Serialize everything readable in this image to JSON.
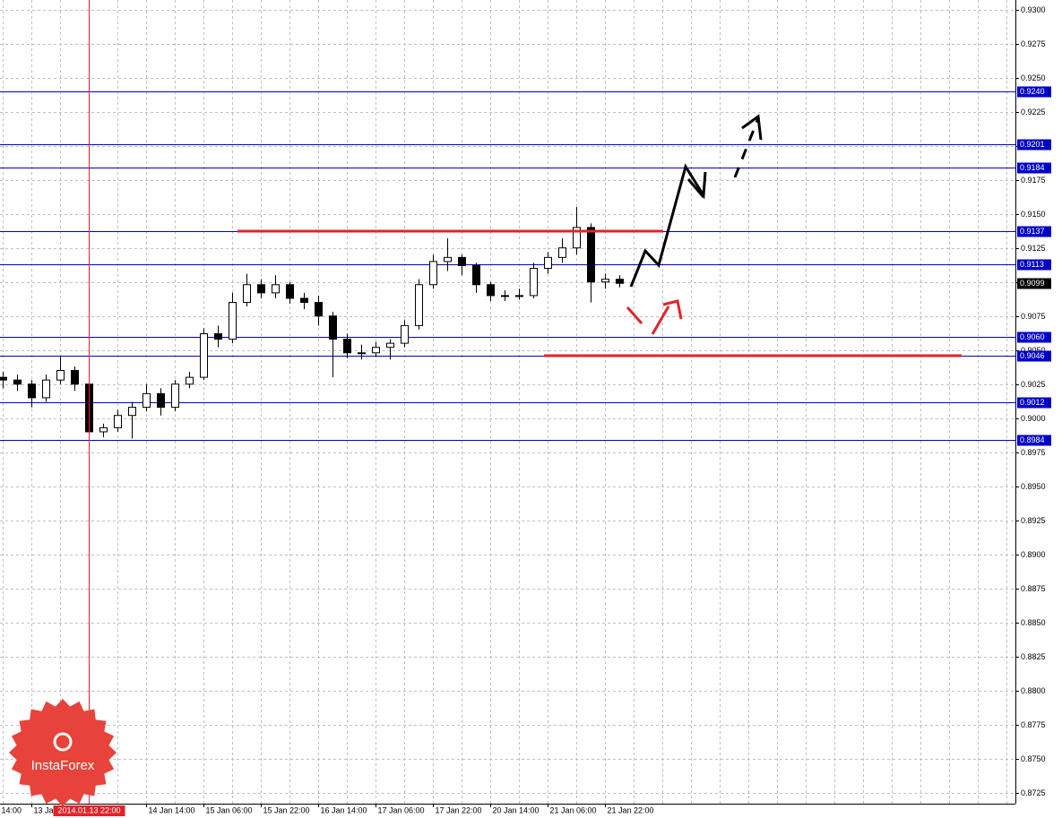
{
  "chart_data": {
    "type": "candlestick",
    "x": [
      8,
      12,
      16,
      20,
      24,
      28,
      32,
      36,
      40,
      44,
      48,
      52,
      56,
      60,
      64,
      68,
      72,
      76,
      80,
      84,
      88,
      92,
      96,
      100,
      104,
      108,
      112,
      116,
      120,
      124,
      128,
      132,
      136,
      140,
      144,
      148,
      152,
      156,
      160,
      164,
      168,
      172,
      176,
      180
    ],
    "open": [
      0.903,
      0.9028,
      0.9025,
      0.9015,
      0.9028,
      0.9035,
      0.9025,
      0.899,
      0.8993,
      0.9002,
      0.9008,
      0.9018,
      0.9008,
      0.9025,
      0.903,
      0.9062,
      0.9058,
      0.9085,
      0.9098,
      0.9092,
      0.9098,
      0.9088,
      0.9085,
      0.9075,
      0.9058,
      0.9048,
      0.9048,
      0.9052,
      0.9055,
      0.9068,
      0.9098,
      0.9115,
      0.9118,
      0.9112,
      0.9098,
      0.909,
      0.909,
      0.909,
      0.911,
      0.9118,
      0.9125,
      0.914,
      0.91,
      0.9102
    ],
    "high": [
      0.9034,
      0.9032,
      0.9028,
      0.9032,
      0.9046,
      0.9038,
      0.9028,
      0.8996,
      0.9006,
      0.9012,
      0.9025,
      0.9022,
      0.9028,
      0.9034,
      0.9066,
      0.9068,
      0.9092,
      0.9106,
      0.9102,
      0.9105,
      0.91,
      0.9092,
      0.909,
      0.9078,
      0.9062,
      0.9054,
      0.9056,
      0.9058,
      0.9072,
      0.9102,
      0.912,
      0.9132,
      0.912,
      0.9114,
      0.91,
      0.9094,
      0.9095,
      0.9114,
      0.9122,
      0.9132,
      0.9155,
      0.9143,
      0.9106,
      0.9105
    ],
    "low": [
      0.9022,
      0.902,
      0.9008,
      0.9012,
      0.9025,
      0.902,
      0.8985,
      0.8986,
      0.899,
      0.8985,
      0.9005,
      0.9002,
      0.9005,
      0.9022,
      0.9028,
      0.9052,
      0.9055,
      0.9082,
      0.9088,
      0.9088,
      0.9084,
      0.908,
      0.9068,
      0.903,
      0.9044,
      0.9043,
      0.9045,
      0.9043,
      0.9052,
      0.9065,
      0.9095,
      0.9108,
      0.9105,
      0.9092,
      0.9086,
      0.9086,
      0.9087,
      0.9088,
      0.9106,
      0.9114,
      0.912,
      0.9085,
      0.9095,
      0.9096
    ],
    "close": [
      0.9028,
      0.9025,
      0.9015,
      0.9028,
      0.9035,
      0.9025,
      0.899,
      0.8993,
      0.9002,
      0.9008,
      0.9018,
      0.9008,
      0.9025,
      0.903,
      0.9062,
      0.9058,
      0.9085,
      0.9098,
      0.9092,
      0.9098,
      0.9088,
      0.9085,
      0.9075,
      0.9058,
      0.9048,
      0.9048,
      0.9052,
      0.9055,
      0.9068,
      0.9098,
      0.9115,
      0.9118,
      0.9112,
      0.9098,
      0.909,
      0.909,
      0.909,
      0.911,
      0.9118,
      0.9125,
      0.914,
      0.91,
      0.9102,
      0.9099
    ],
    "xlim": [
      7.25,
      290.5
    ],
    "xticks": [
      {
        "value": 7,
        "label": "14:00"
      },
      {
        "value": 16,
        "label": "13 Jan 06:00"
      },
      {
        "value": 48,
        "label": "14 Jan 14:00"
      },
      {
        "value": 64,
        "label": "15 Jan 06:00"
      },
      {
        "value": 80,
        "label": "15 Jan 22:00"
      },
      {
        "value": 96,
        "label": "16 Jan 14:00"
      },
      {
        "value": 112,
        "label": "17 Jan 06:00"
      },
      {
        "value": 128,
        "label": "17 Jan 22:00"
      },
      {
        "value": 144,
        "label": "20 Jan 14:00"
      },
      {
        "value": 160,
        "label": "21 Jan 06:00"
      },
      {
        "value": 176,
        "label": "21 Jan 22:00"
      }
    ],
    "ylim": [
      0.8717,
      0.9307
    ],
    "yticks": [
      {
        "value": 0.8725,
        "label": "0.8725"
      },
      {
        "value": 0.875,
        "label": "0.8750"
      },
      {
        "value": 0.8775,
        "label": "0.8775"
      },
      {
        "value": 0.88,
        "label": "0.8800"
      },
      {
        "value": 0.8825,
        "label": "0.8825"
      },
      {
        "value": 0.885,
        "label": "0.8850"
      },
      {
        "value": 0.8875,
        "label": "0.8875"
      },
      {
        "value": 0.89,
        "label": "0.8900"
      },
      {
        "value": 0.8925,
        "label": "0.8925"
      },
      {
        "value": 0.895,
        "label": "0.8950"
      },
      {
        "value": 0.8975,
        "label": "0.8975"
      },
      {
        "value": 0.9,
        "label": "0.9000"
      },
      {
        "value": 0.9025,
        "label": "0.9025"
      },
      {
        "value": 0.905,
        "label": "0.9050"
      },
      {
        "value": 0.9075,
        "label": "0.9075"
      },
      {
        "value": 0.91,
        "label": "0.9100"
      },
      {
        "value": 0.9125,
        "label": "0.9125"
      },
      {
        "value": 0.915,
        "label": "0.9150"
      },
      {
        "value": 0.9175,
        "label": "0.9175"
      },
      {
        "value": 0.92,
        "label": "0.9200"
      },
      {
        "value": 0.9225,
        "label": "0.9225"
      },
      {
        "value": 0.925,
        "label": "0.9250"
      },
      {
        "value": 0.9275,
        "label": "0.9275"
      },
      {
        "value": 0.93,
        "label": "0.9300"
      }
    ],
    "grid": true,
    "levels": [
      {
        "value": 0.924,
        "label": "0.9240"
      },
      {
        "value": 0.9201,
        "label": "0.9201"
      },
      {
        "value": 0.9184,
        "label": "0.9184"
      },
      {
        "value": 0.9137,
        "label": "0.9137"
      },
      {
        "value": 0.9113,
        "label": "0.9113"
      },
      {
        "value": 0.906,
        "label": "0.9060"
      },
      {
        "value": 0.9046,
        "label": "0.9046"
      },
      {
        "value": 0.9012,
        "label": "0.9012"
      },
      {
        "value": 0.8984,
        "label": "0.8984"
      }
    ],
    "level_color": "#0000c8",
    "last_price": {
      "value": 0.9099,
      "label": "0.9099"
    },
    "crosshair": {
      "x": 32,
      "label": "2014.01.13 22:00"
    },
    "logo_text": "InstaForex"
  }
}
